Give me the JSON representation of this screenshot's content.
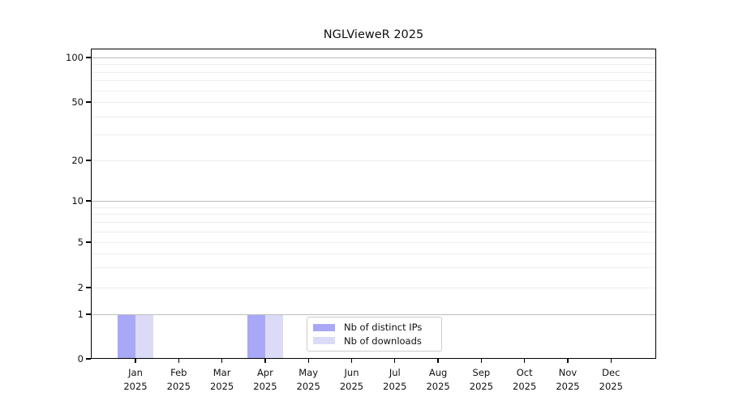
{
  "chart_data": {
    "type": "bar",
    "title": "NGLVieweR 2025",
    "categories": [
      "Jan",
      "Feb",
      "Mar",
      "Apr",
      "May",
      "Jun",
      "Jul",
      "Aug",
      "Sep",
      "Oct",
      "Nov",
      "Dec"
    ],
    "x_tick_second_line": "2025",
    "series": [
      {
        "name": "Nb of distinct IPs",
        "color": "#a8a8f7",
        "values": [
          1,
          0,
          0,
          1,
          0,
          0,
          0,
          0,
          0,
          0,
          0,
          0
        ]
      },
      {
        "name": "Nb of downloads",
        "color": "#dbdbf8",
        "values": [
          1,
          0,
          0,
          1,
          0,
          0,
          0,
          0,
          0,
          0,
          0,
          0
        ]
      }
    ],
    "y_axis": {
      "scale": "log-like",
      "tick_values": [
        0,
        1,
        2,
        5,
        10,
        20,
        50,
        100
      ],
      "tick_labels": [
        "0",
        "1",
        "2",
        "5",
        "10",
        "20",
        "50",
        "100"
      ],
      "range": [
        0,
        100
      ]
    },
    "legend": {
      "position": "bottom-center-inside",
      "entries": [
        "Nb of distinct IPs",
        "Nb of downloads"
      ]
    },
    "grid": {
      "horizontal": true,
      "decade_lines": [
        1,
        10,
        100
      ],
      "minor_log_lines": true
    },
    "colors": {
      "decade_gridline": "#bdbdbd",
      "minor_gridline": "#ededed",
      "axis": "#000000",
      "legend_border": "#cccccc",
      "background": "#ffffff"
    }
  }
}
